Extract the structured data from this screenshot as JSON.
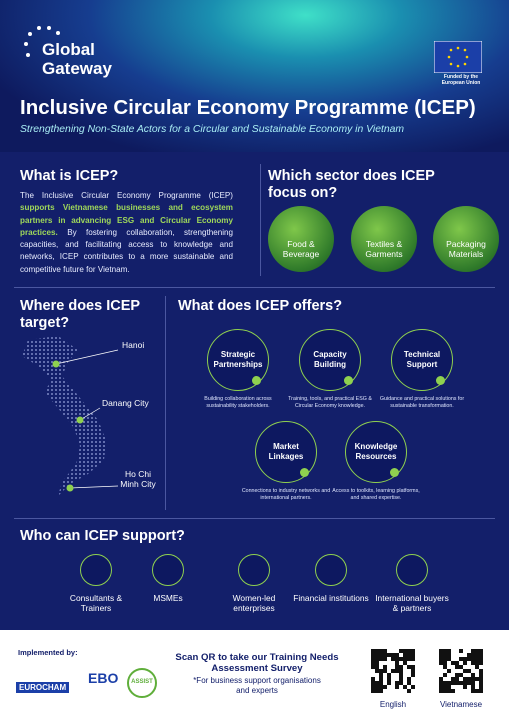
{
  "header": {
    "logo": "Global Gateway",
    "funded": "Funded by the European Union",
    "title": "Inclusive Circular Economy Programme (ICEP)",
    "subtitle": "Strengthening Non-State Actors for a Circular and Sustainable Economy in Vietnam"
  },
  "what_is": {
    "heading": "What is ICEP?",
    "intro": "The Inclusive Circular Economy Programme (ICEP)",
    "highlight": "supports Vietnamese businesses and ecosystem partners in advancing ESG and Circular Economy practices.",
    "rest": "By fostering collaboration, strengthening capacities, and facilitating access to knowledge and networks, ICEP contributes to a more sustainable and competitive future for Vietnam."
  },
  "sectors": {
    "heading": "Which sector does ICEP focus on?",
    "items": [
      "Food & Beverage",
      "Textiles & Garments",
      "Packaging Materials"
    ]
  },
  "target": {
    "heading": "Where does ICEP target?",
    "locations": [
      "Hanoi",
      "Danang City",
      "Ho Chi Minh City"
    ]
  },
  "offers": {
    "heading": "What does ICEP offers?",
    "items": [
      {
        "title": "Strategic Partnerships",
        "desc": "Building collaboration across sustainability stakeholders."
      },
      {
        "title": "Capacity Building",
        "desc": "Training, tools, and practical ESG & Circular Economy knowledge."
      },
      {
        "title": "Technical Support",
        "desc": "Guidance and practical solutions for sustainable transformation."
      },
      {
        "title": "Market Linkages",
        "desc": "Connections to industry networks and international partners."
      },
      {
        "title": "Knowledge Resources",
        "desc": "Access to toolkits, learning platforms, and shared expertise."
      }
    ]
  },
  "support": {
    "heading": "Who can ICEP support?",
    "items": [
      "Consultants & Trainers",
      "MSMEs",
      "Women-led enterprises",
      "Financial institutions",
      "International buyers & partners"
    ]
  },
  "footer": {
    "implemented": "Implemented by:",
    "partners": [
      "EUROCHAM",
      "EBO",
      "ASSIST"
    ],
    "cta": "Scan QR to take our Training Needs Assessment Survey",
    "note": "*For business support organisations and experts",
    "qr_labels": [
      "English",
      "Vietnamese"
    ]
  }
}
